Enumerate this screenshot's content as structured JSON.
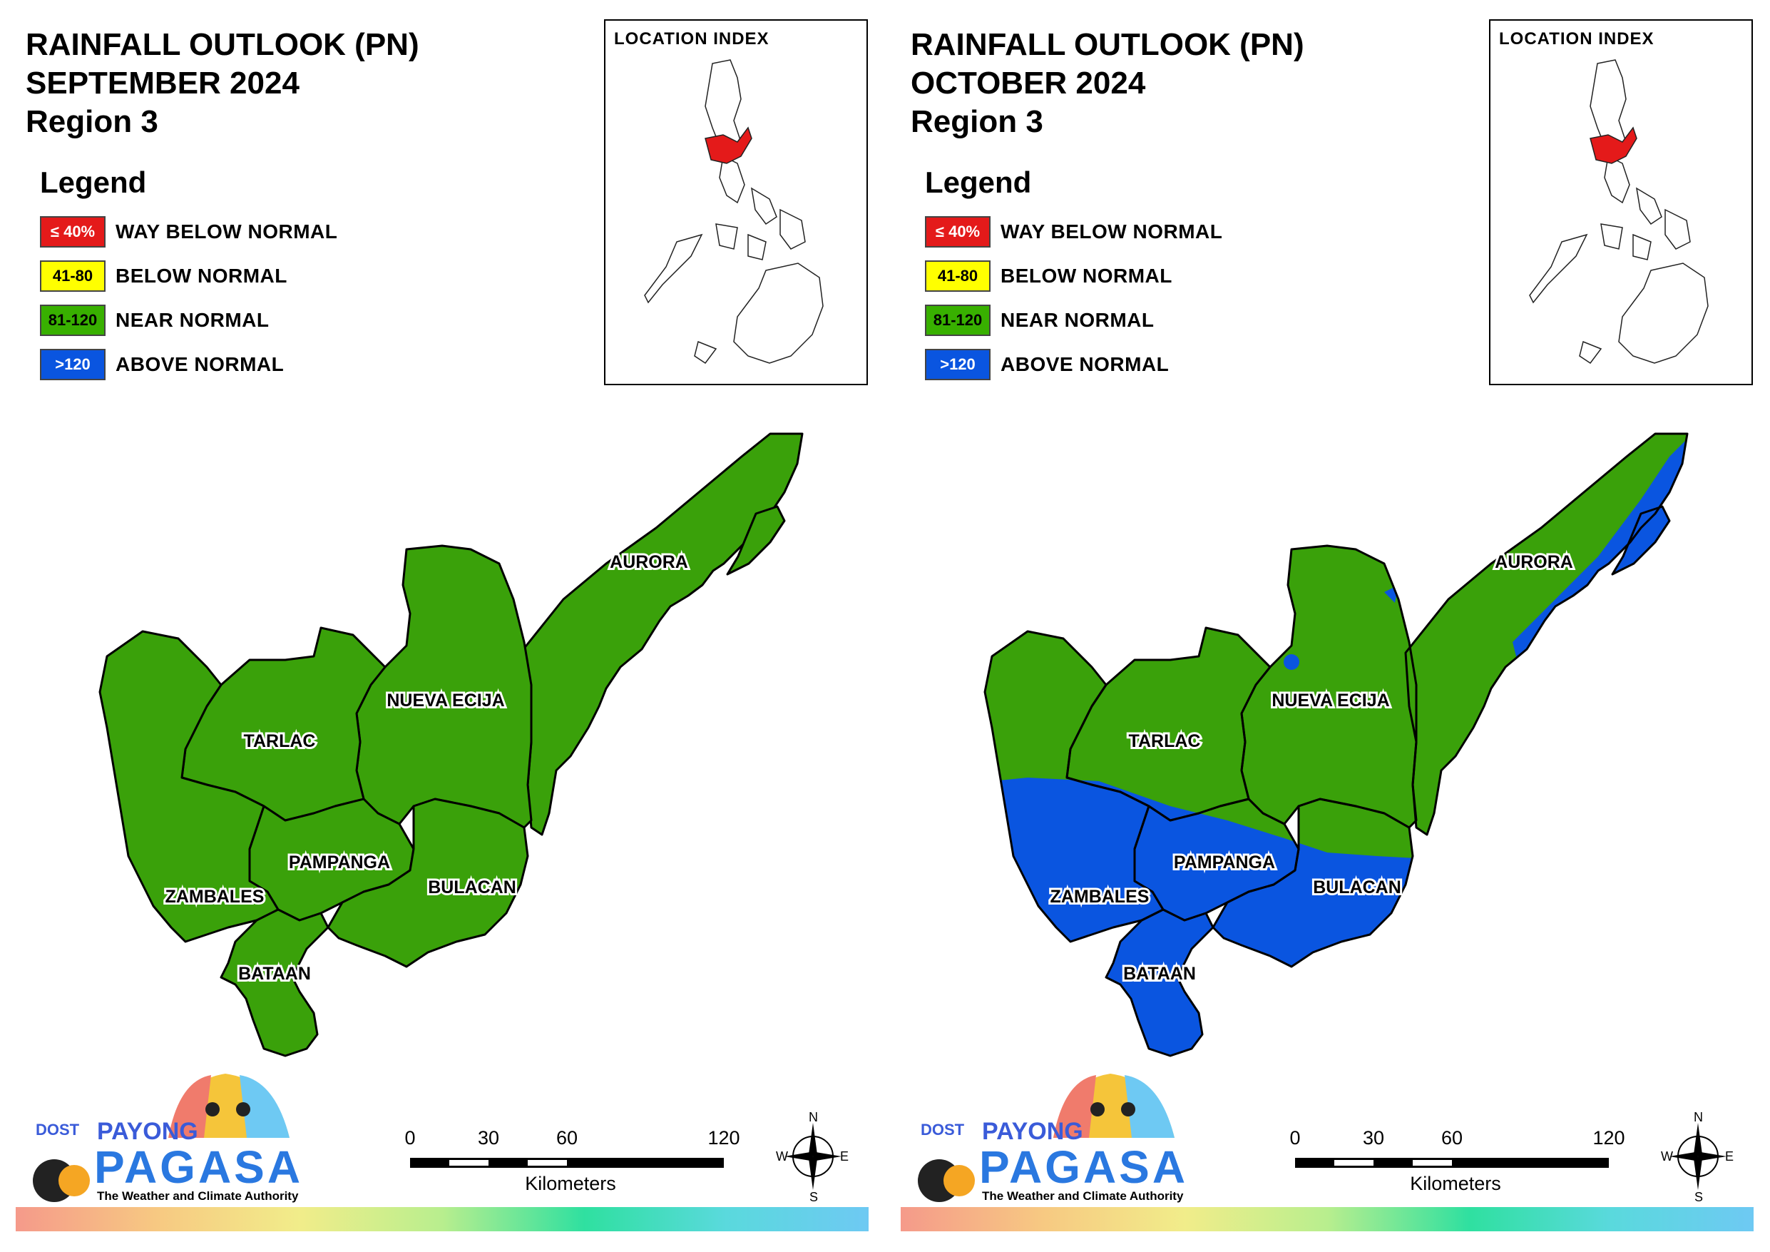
{
  "panels": [
    {
      "id": "september",
      "title_line1": "RAINFALL OUTLOOK (PN)",
      "title_line2": "SEPTEMBER 2024",
      "title_line3": "Region 3",
      "mode": "sep"
    },
    {
      "id": "october",
      "title_line1": "RAINFALL OUTLOOK (PN)",
      "title_line2": "OCTOBER 2024",
      "title_line3": "Region 3",
      "mode": "oct"
    }
  ],
  "legend": {
    "heading": "Legend",
    "items": [
      {
        "range": "≤ 40%",
        "label": "WAY BELOW NORMAL",
        "color": "#e41a1a",
        "text_color": "#ffffff"
      },
      {
        "range": "41-80",
        "label": "BELOW NORMAL",
        "color": "#ffff00",
        "text_color": "#000000"
      },
      {
        "range": "81-120",
        "label": "NEAR NORMAL",
        "color": "#38b000",
        "text_color": "#000000"
      },
      {
        "range": ">120",
        "label": "ABOVE NORMAL",
        "color": "#0a55e0",
        "text_color": "#ffffff"
      }
    ]
  },
  "location_index": {
    "title": "LOCATION INDEX",
    "highlight_color": "#e41a1a"
  },
  "provinces": {
    "aurora": "AURORA",
    "nueva_ecija": "NUEVA ECIJA",
    "tarlac": "TARLAC",
    "pampanga": "PAMPANGA",
    "bulacan": "BULACAN",
    "zambales": "ZAMBALES",
    "bataan": "BATAAN"
  },
  "colors": {
    "near_normal": "#3aa10a",
    "above_normal": "#0a55e0"
  },
  "logo": {
    "dost": "DOST",
    "payong": "PAYONG",
    "pagasa": "PAGASA",
    "tagline": "The Weather and Climate Authority"
  },
  "scale_bar": {
    "ticks": [
      "0",
      "30",
      "60",
      "120"
    ],
    "unit": "Kilometers"
  },
  "compass": {
    "n": "N",
    "s": "S",
    "e": "E",
    "w": "W"
  }
}
